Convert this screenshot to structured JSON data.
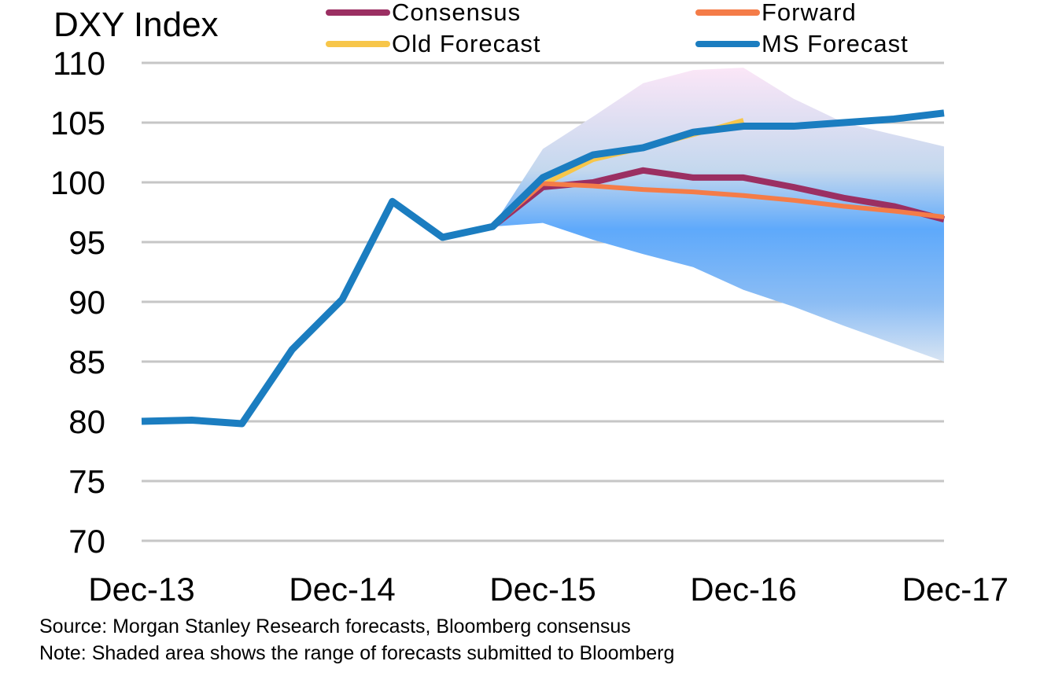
{
  "chart_data": {
    "type": "line",
    "title": "DXY Index",
    "ylim": [
      70,
      110
    ],
    "yticks": [
      110,
      105,
      100,
      95,
      90,
      85,
      80,
      75,
      70
    ],
    "x_index_range": [
      0,
      16
    ],
    "x_ticks": [
      {
        "label": "Dec-13",
        "index": 0
      },
      {
        "label": "Dec-14",
        "index": 4
      },
      {
        "label": "Dec-15",
        "index": 8
      },
      {
        "label": "Dec-16",
        "index": 12
      },
      {
        "label": "Dec-17",
        "index": 16
      }
    ],
    "shaded_range": {
      "description": "range of forecasts submitted to Bloomberg",
      "start_index": 7,
      "upper": [
        [
          7,
          96.3
        ],
        [
          8,
          102.8
        ],
        [
          9,
          105.5
        ],
        [
          10,
          108.3
        ],
        [
          11,
          109.4
        ],
        [
          12,
          109.6
        ],
        [
          13,
          107.0
        ],
        [
          14,
          105.0
        ],
        [
          15,
          104.0
        ],
        [
          16,
          103.0
        ]
      ],
      "lower": [
        [
          7,
          96.3
        ],
        [
          8,
          96.6
        ],
        [
          9,
          95.2
        ],
        [
          10,
          94.0
        ],
        [
          11,
          92.9
        ],
        [
          12,
          91.0
        ],
        [
          13,
          89.6
        ],
        [
          14,
          88.0
        ],
        [
          15,
          86.5
        ],
        [
          16,
          85.0
        ]
      ]
    },
    "series": [
      {
        "name": "Consensus",
        "color": "#9b2f62",
        "points": [
          [
            7,
            96.3
          ],
          [
            8,
            99.6
          ],
          [
            9,
            100.0
          ],
          [
            10,
            101.0
          ],
          [
            11,
            100.4
          ],
          [
            12,
            100.4
          ],
          [
            13,
            99.6
          ],
          [
            14,
            98.7
          ],
          [
            15,
            98.0
          ],
          [
            16,
            96.9
          ]
        ]
      },
      {
        "name": "Forward",
        "color": "#f47c48",
        "points": [
          [
            7,
            96.3
          ],
          [
            8,
            99.9
          ],
          [
            9,
            99.7
          ],
          [
            10,
            99.4
          ],
          [
            11,
            99.2
          ],
          [
            12,
            98.9
          ],
          [
            13,
            98.5
          ],
          [
            14,
            98.0
          ],
          [
            15,
            97.6
          ],
          [
            16,
            97.1
          ]
        ]
      },
      {
        "name": "Old Forecast",
        "color": "#f7c64a",
        "points": [
          [
            7,
            96.3
          ],
          [
            8,
            99.8
          ],
          [
            9,
            101.9
          ],
          [
            10,
            102.9
          ],
          [
            11,
            104.0
          ],
          [
            12,
            105.2
          ]
        ]
      },
      {
        "name": "MS Forecast",
        "color": "#1b7dc0",
        "points": [
          [
            0,
            80.0
          ],
          [
            1,
            80.1
          ],
          [
            2,
            79.8
          ],
          [
            3,
            86.0
          ],
          [
            4,
            90.2
          ],
          [
            5,
            98.4
          ],
          [
            6,
            95.4
          ],
          [
            7,
            96.3
          ],
          [
            8,
            100.4
          ],
          [
            9,
            102.3
          ],
          [
            10,
            102.9
          ],
          [
            11,
            104.2
          ],
          [
            12,
            104.7
          ],
          [
            13,
            104.7
          ],
          [
            14,
            105.0
          ],
          [
            15,
            105.3
          ],
          [
            16,
            105.8
          ]
        ]
      }
    ],
    "legend": [
      "Consensus",
      "Forward",
      "Old Forecast",
      "MS Forecast"
    ],
    "grid": true
  },
  "footer": {
    "source": "Source: Morgan Stanley Research forecasts, Bloomberg consensus",
    "note": "Note: Shaded area shows the range of forecasts submitted to Bloomberg"
  }
}
